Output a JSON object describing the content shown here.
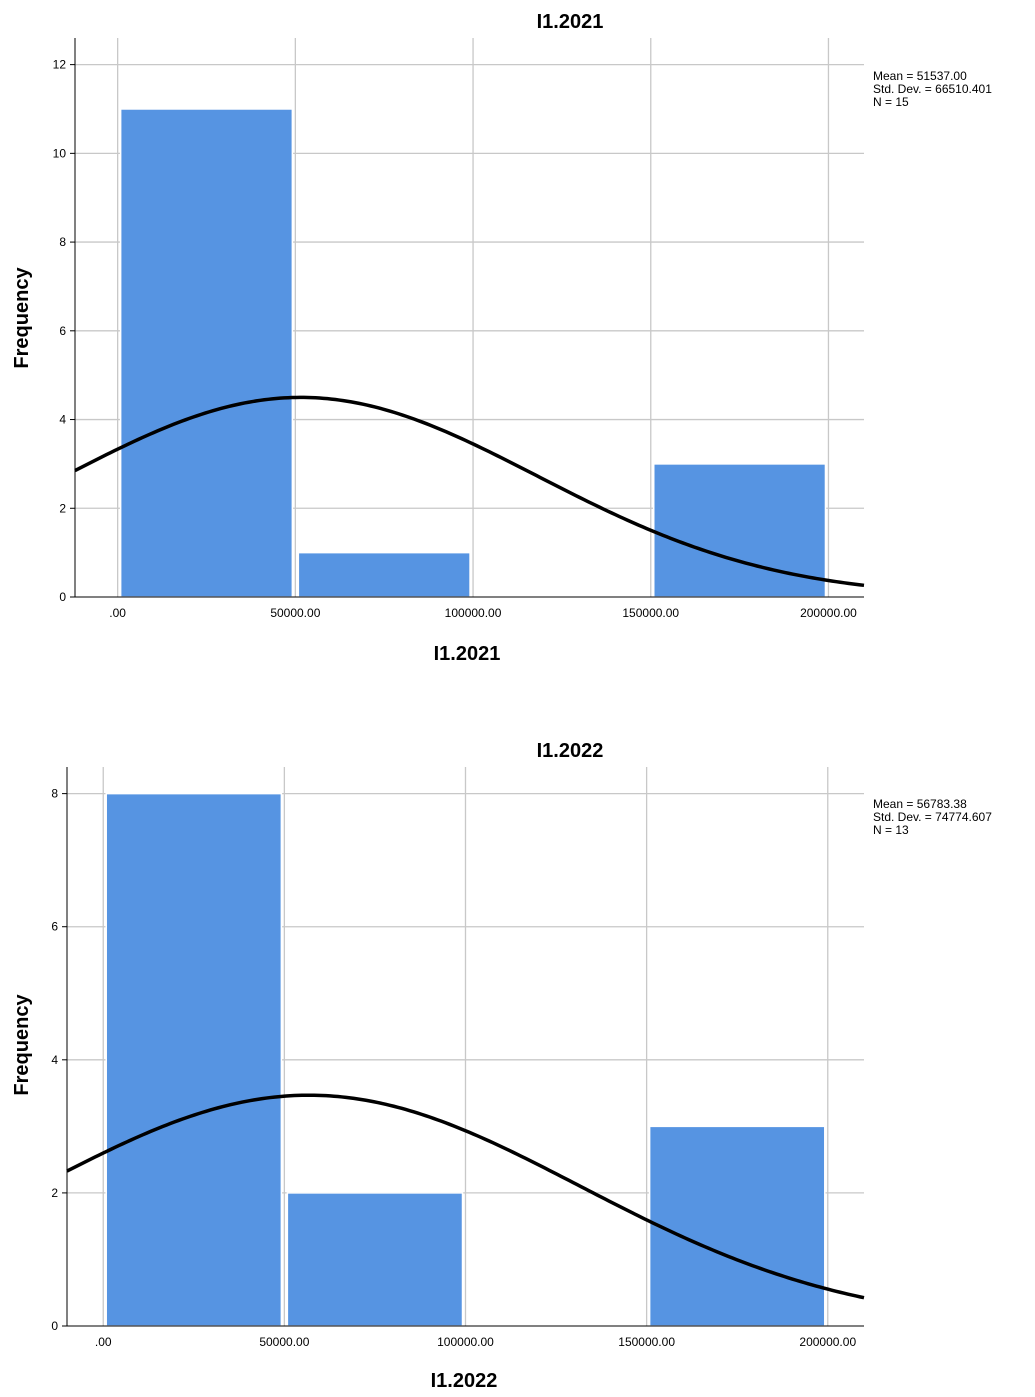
{
  "charts": [
    {
      "title": "I1.2021",
      "xlabel": "I1.2021",
      "ylabel": "Frequency",
      "stats": {
        "mean": "Mean = 51537.00",
        "std": "Std. Dev. = 66510.401",
        "n": "N = 15"
      }
    },
    {
      "title": "I1.2022",
      "xlabel": "I1.2022",
      "ylabel": "Frequency",
      "stats": {
        "mean": "Mean = 56783.38",
        "std": "Std. Dev. = 74774.607",
        "n": "N = 13"
      }
    }
  ],
  "chart_data": [
    {
      "type": "bar",
      "subtype": "histogram",
      "title": "I1.2021",
      "xlabel": "I1.2021",
      "ylabel": "Frequency",
      "bins": [
        [
          0,
          50000
        ],
        [
          50000,
          100000
        ],
        [
          100000,
          150000
        ],
        [
          150000,
          200000
        ]
      ],
      "values": [
        11,
        1,
        0,
        3
      ],
      "xlim": [
        -12000,
        210000
      ],
      "ylim": [
        0,
        12.6
      ],
      "xticks": [
        0,
        50000,
        100000,
        150000,
        200000
      ],
      "xtick_labels": [
        ".00",
        "50000.00",
        "100000.00",
        "150000.00",
        "200000.00"
      ],
      "yticks": [
        0,
        2,
        4,
        6,
        8,
        10,
        12
      ],
      "normal_curve": {
        "mean": 51537.0,
        "std": 66510.401,
        "n": 15,
        "bin_width": 50000
      },
      "grid": true,
      "bar_color": "#5694e2"
    },
    {
      "type": "bar",
      "subtype": "histogram",
      "title": "I1.2022",
      "xlabel": "I1.2022",
      "ylabel": "Frequency",
      "bins": [
        [
          0,
          50000
        ],
        [
          50000,
          100000
        ],
        [
          100000,
          150000
        ],
        [
          150000,
          200000
        ]
      ],
      "values": [
        8,
        2,
        0,
        3
      ],
      "xlim": [
        -10000,
        210000
      ],
      "ylim": [
        0,
        8.4
      ],
      "xticks": [
        0,
        50000,
        100000,
        150000,
        200000
      ],
      "xtick_labels": [
        ".00",
        "50000.00",
        "100000.00",
        "150000.00",
        "200000.00"
      ],
      "yticks": [
        0,
        2,
        4,
        6,
        8
      ],
      "normal_curve": {
        "mean": 56783.38,
        "std": 74774.607,
        "n": 13,
        "bin_width": 50000
      },
      "grid": true,
      "bar_color": "#5694e2"
    }
  ]
}
